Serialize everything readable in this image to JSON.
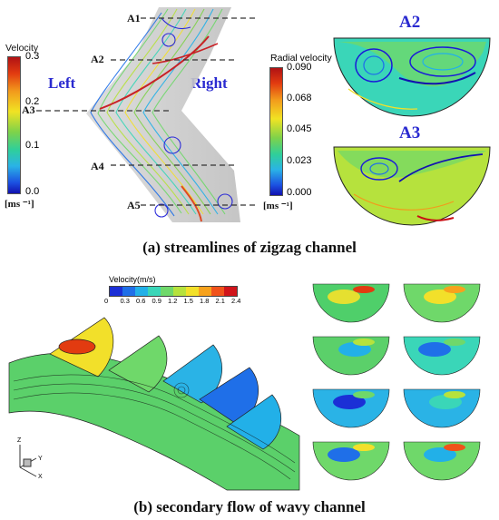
{
  "panel_a": {
    "caption": "(a) streamlines of zigzag channel",
    "left_label": "Left",
    "right_label": "Right",
    "section_labels": [
      "A1",
      "A2",
      "A3",
      "A4",
      "A5"
    ],
    "velocity_bar": {
      "title": "Velocity",
      "ticks": [
        "0.3",
        "0.2",
        "0.1",
        "0.0"
      ],
      "unit": "[ms ⁻¹]"
    },
    "radial_bar": {
      "title": "Radial velocity",
      "ticks": [
        "0.090",
        "0.068",
        "0.045",
        "0.023",
        "0.000"
      ],
      "unit": "[ms ⁻¹]"
    },
    "inset_titles": [
      "A2",
      "A3"
    ]
  },
  "panel_b": {
    "caption": "(b) secondary flow of wavy channel",
    "legend_title": "Velocity(m/s)",
    "legend_ticks": [
      "0",
      "0.3",
      "0.6",
      "0.9",
      "1.2",
      "1.5",
      "1.8",
      "2.1",
      "2.4"
    ],
    "legend_colors": [
      "#1b2fd6",
      "#1f6fe8",
      "#22b0e8",
      "#3ad6b8",
      "#6fd86a",
      "#b6e23d",
      "#f2e02a",
      "#f7a21c",
      "#f0521a",
      "#d0141a"
    ],
    "axes_labels": [
      "Z",
      "Y",
      "X"
    ]
  },
  "colors": {
    "accent_blue": "#2a2ad0",
    "gradient_top": "#c80f14",
    "gradient_bottom": "#1a1ad8"
  }
}
